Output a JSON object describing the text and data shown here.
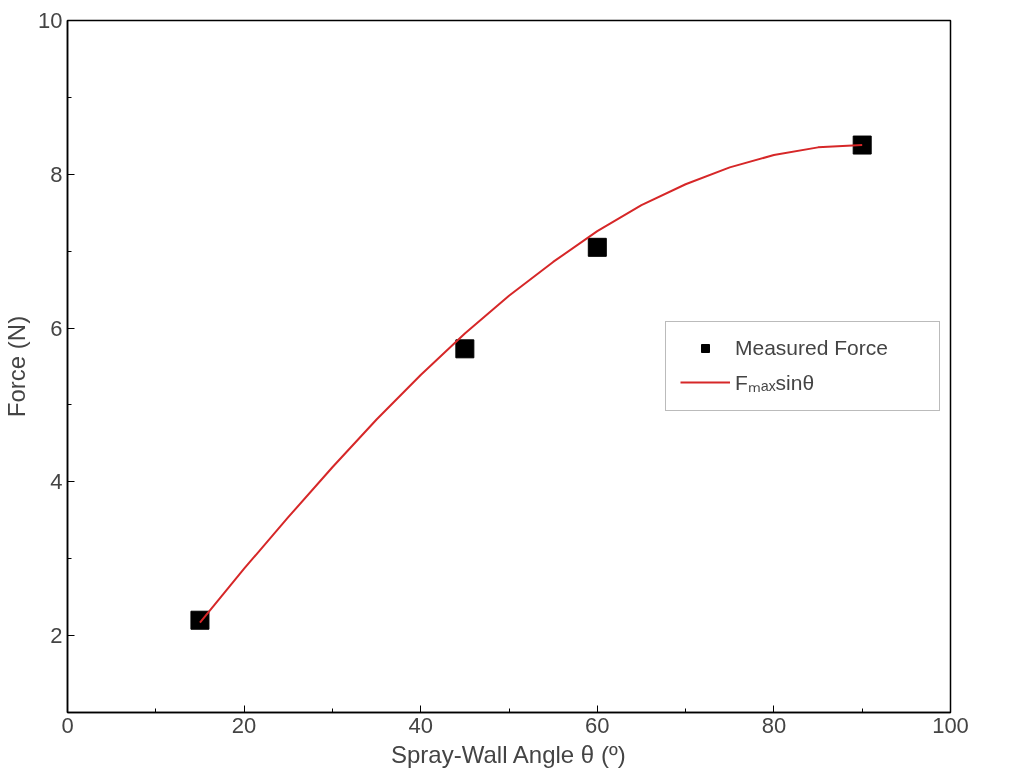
{
  "chart_data": {
    "type": "scatter",
    "xlabel": "Spray-Wall Angle θ (º)",
    "ylabel": "Force (N)",
    "xlim": [
      0,
      100
    ],
    "xticks": [
      0,
      20,
      40,
      60,
      80,
      100
    ],
    "ylim": [
      1,
      10
    ],
    "yticks": [
      2,
      4,
      6,
      8,
      10
    ],
    "grid": false,
    "legend": "right",
    "series": [
      {
        "name": "Measured Force",
        "color": "#000000",
        "marker": "square",
        "x": [
          15,
          45,
          60,
          90
        ],
        "values": [
          2.2,
          5.73,
          7.05,
          8.38
        ]
      },
      {
        "name": "Fₘₐₓsinθ",
        "type": "line",
        "color": "#d62728",
        "line_style": "solid",
        "x": [
          15,
          20,
          25,
          30,
          35,
          40,
          45,
          50,
          55,
          60,
          65,
          70,
          75,
          80,
          85,
          90
        ],
        "values": [
          2.17,
          2.87,
          3.54,
          4.19,
          4.81,
          5.39,
          5.93,
          6.42,
          6.86,
          7.26,
          7.6,
          7.87,
          8.09,
          8.25,
          8.35,
          8.38
        ]
      }
    ]
  }
}
